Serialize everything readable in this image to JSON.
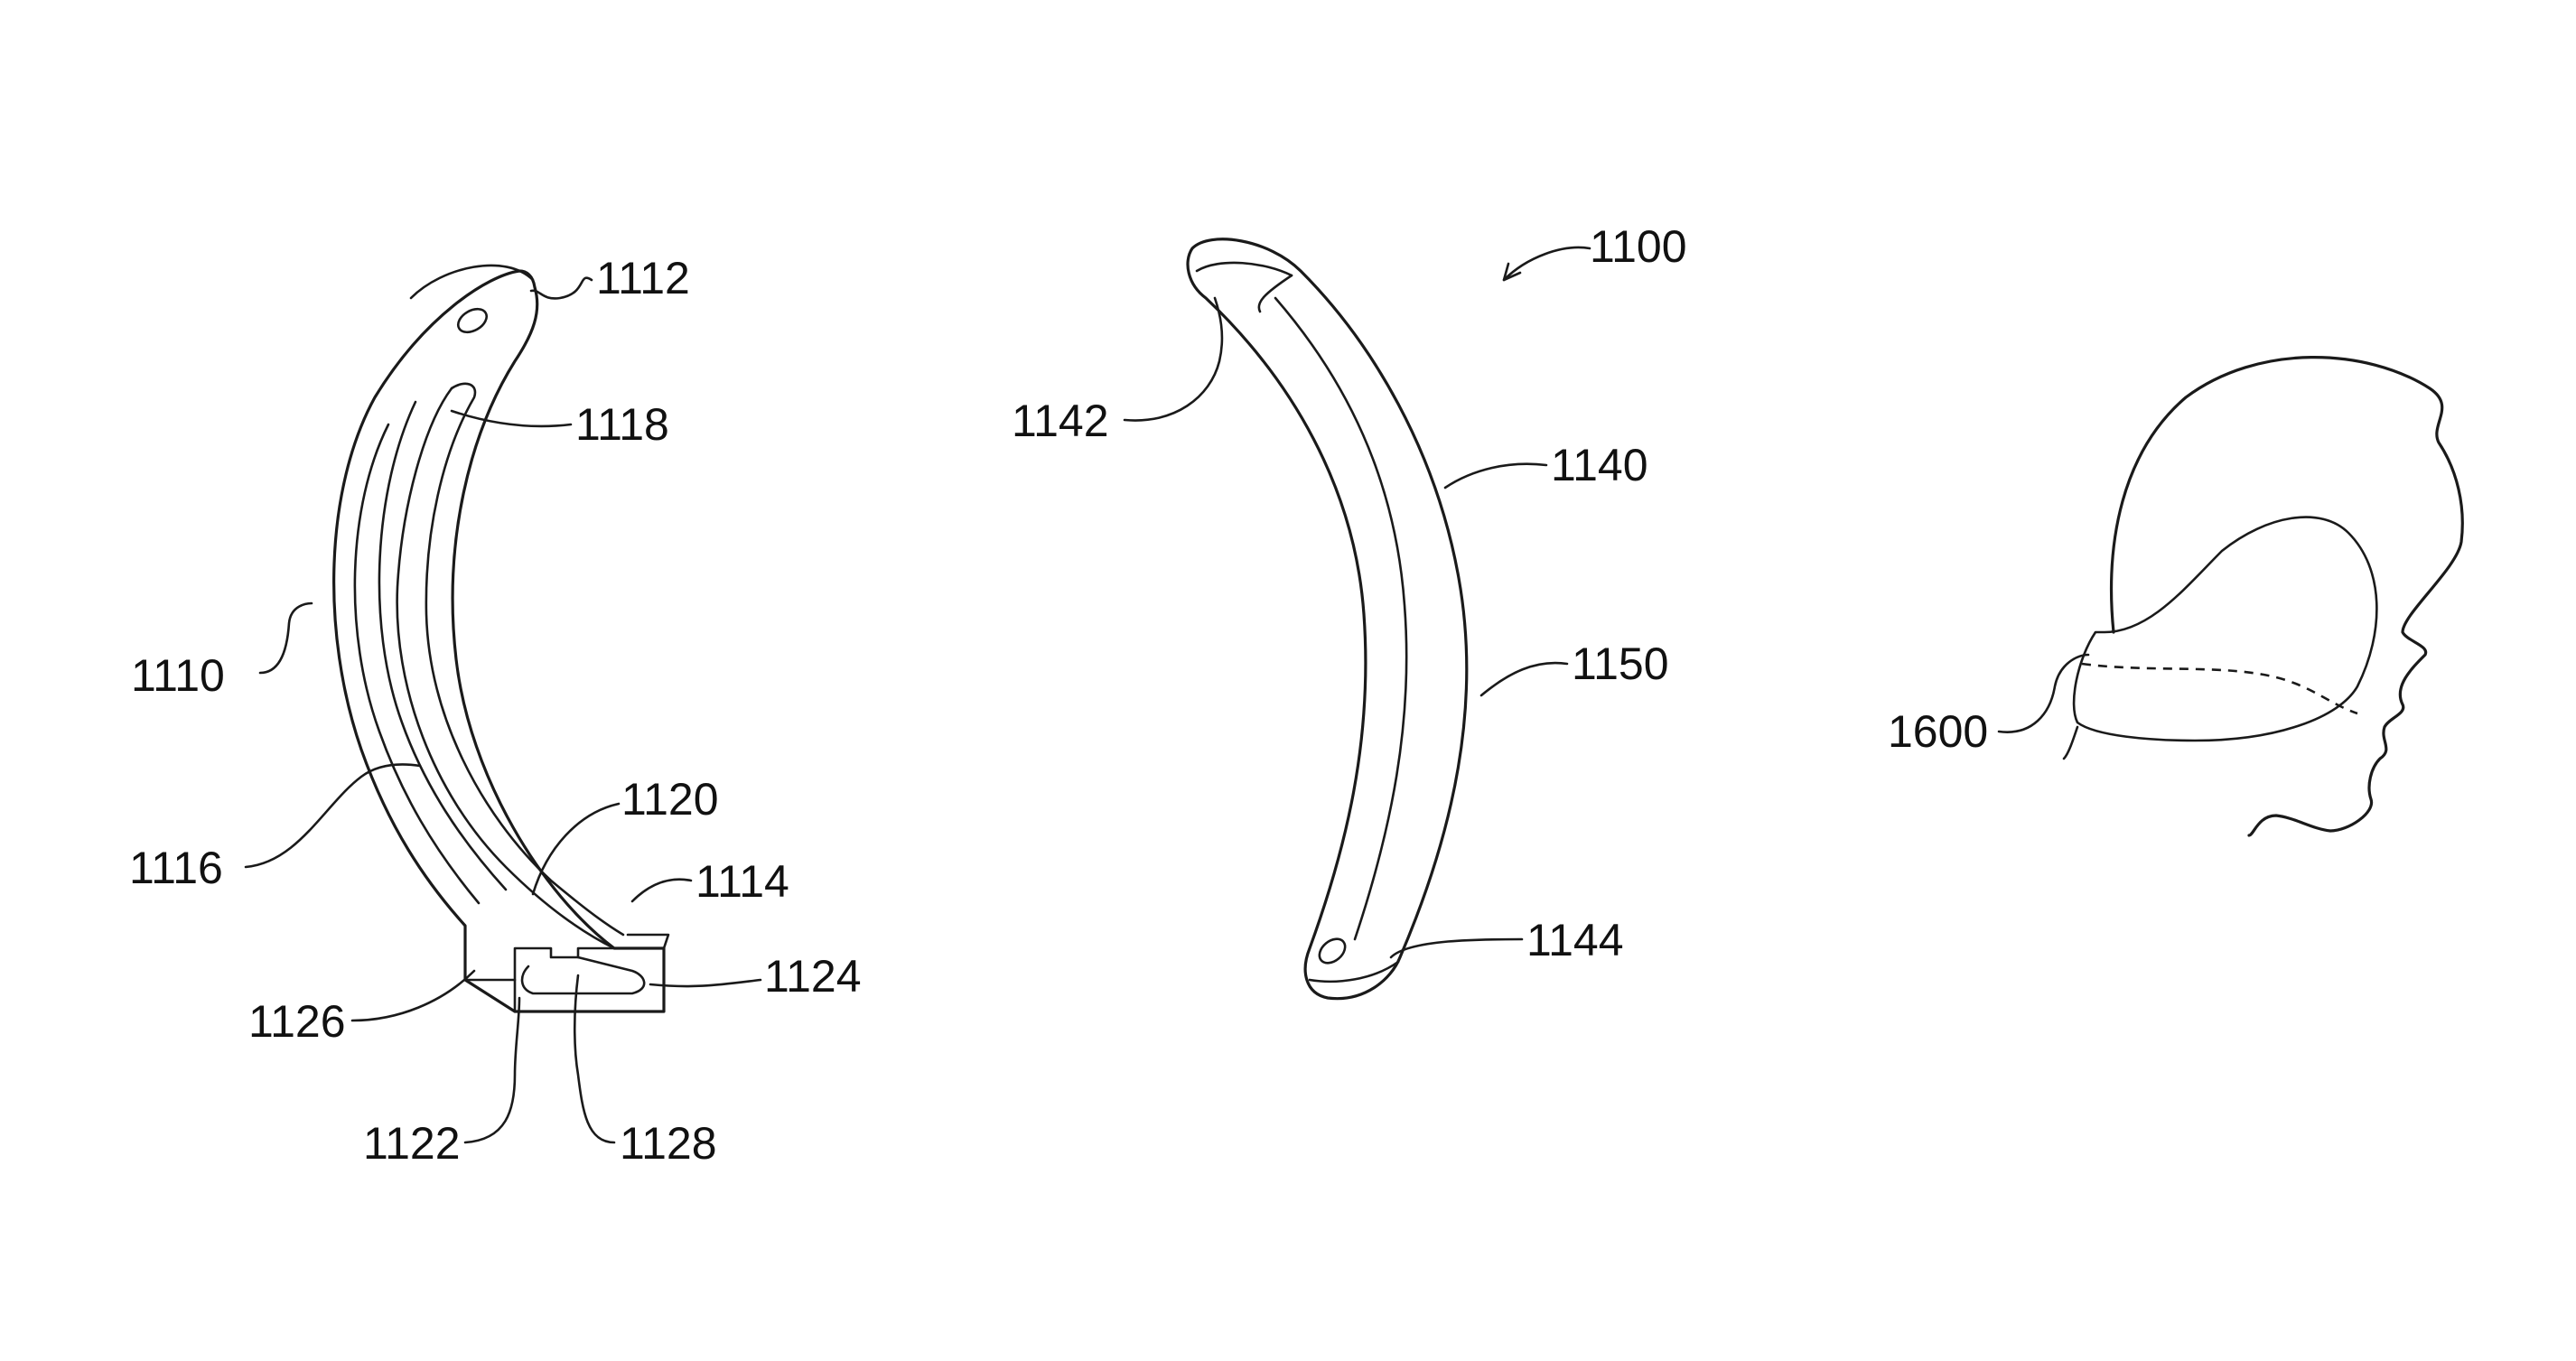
{
  "labels": {
    "assembly": "1100",
    "arm_body": "1110",
    "arm_top_end": "1112",
    "arm_bottom_end": "1114",
    "arm_outer_face": "1116",
    "arm_slot": "1118",
    "arm_channel": "1120",
    "slot_bore": "1122",
    "end_lip": "1124",
    "end_block": "1126",
    "slot_key": "1128",
    "insert_body": "1140",
    "insert_top_end": "1142",
    "insert_bottom_end": "1144",
    "insert_edge": "1150",
    "head_device": "1600"
  }
}
